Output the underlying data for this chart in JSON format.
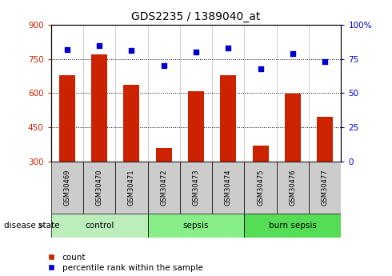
{
  "title": "GDS2235 / 1389040_at",
  "samples": [
    "GSM30469",
    "GSM30470",
    "GSM30471",
    "GSM30472",
    "GSM30473",
    "GSM30474",
    "GSM30475",
    "GSM30476",
    "GSM30477"
  ],
  "count_values": [
    680,
    770,
    635,
    360,
    608,
    680,
    370,
    598,
    495
  ],
  "percentile_values": [
    82,
    85,
    81,
    70,
    80,
    83,
    68,
    79,
    73
  ],
  "groups": [
    {
      "label": "control",
      "indices": [
        0,
        1,
        2
      ],
      "color": "#bbeebb"
    },
    {
      "label": "sepsis",
      "indices": [
        3,
        4,
        5
      ],
      "color": "#88ee88"
    },
    {
      "label": "burn sepsis",
      "indices": [
        6,
        7,
        8
      ],
      "color": "#55dd55"
    }
  ],
  "ylim_left": [
    300,
    900
  ],
  "ylim_right": [
    0,
    100
  ],
  "yticks_left": [
    300,
    450,
    600,
    750,
    900
  ],
  "yticks_right": [
    0,
    25,
    50,
    75,
    100
  ],
  "ytick_right_labels": [
    "0",
    "25",
    "50",
    "75",
    "100%"
  ],
  "bar_color": "#cc2200",
  "dot_color": "#0000cc",
  "bar_width": 0.5,
  "left_tick_color": "#cc2200",
  "right_tick_color": "#0000cc",
  "legend_count_label": "count",
  "legend_pct_label": "percentile rank within the sample",
  "disease_state_label": "disease state"
}
